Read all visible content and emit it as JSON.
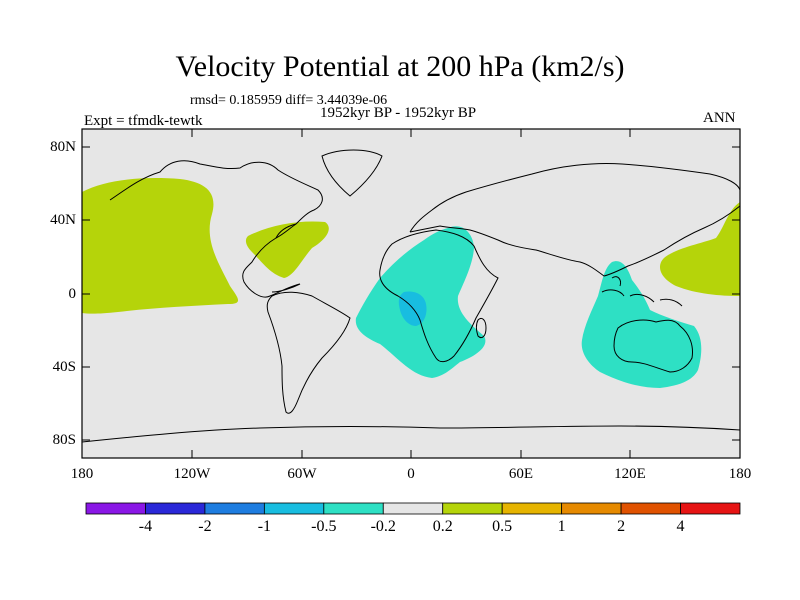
{
  "title": "Velocity Potential at 200 hPa (km2/s)",
  "stats": "rmsd= 0.185959 diff= 3.44039e-06",
  "period": "1952kyr BP - 1952kyr BP",
  "expt": "Expt = tfmdk-tewtk",
  "season": "ANN",
  "map": {
    "y_ticks": [
      "80N",
      "40N",
      "0",
      "40S",
      "80S"
    ],
    "x_ticks": [
      "180",
      "120W",
      "60W",
      "0",
      "60E",
      "120E",
      "180"
    ],
    "ocean_color": "#e6e6e6",
    "contour_regions": [
      {
        "name": "north-pacific",
        "level": "0.2 to 0.5",
        "color": "#b5d40a"
      },
      {
        "name": "caribbean-atlantic",
        "level": "0.2 to 0.5",
        "color": "#b5d40a"
      },
      {
        "name": "west-pacific",
        "level": "0.2 to 0.5",
        "color": "#b5d40a"
      },
      {
        "name": "africa-atlantic",
        "level": "-0.5 to -0.2",
        "color": "#2ee0c4"
      },
      {
        "name": "congo-center",
        "level": "-1 to -0.5",
        "color": "#18bde0"
      },
      {
        "name": "maritime-continent-australia",
        "level": "-0.5 to -0.2",
        "color": "#2ee0c4"
      }
    ]
  },
  "colorbar": {
    "labels": [
      "-4",
      "-2",
      "-1",
      "-0.5",
      "-0.2",
      "0.2",
      "0.5",
      "1",
      "2",
      "4"
    ],
    "colors": [
      "#8a17e6",
      "#2a28d8",
      "#1e7de0",
      "#18bde0",
      "#2ee0c4",
      "#e6e6e6",
      "#b5d40a",
      "#e6b400",
      "#e68a00",
      "#e05200",
      "#e61414"
    ]
  }
}
